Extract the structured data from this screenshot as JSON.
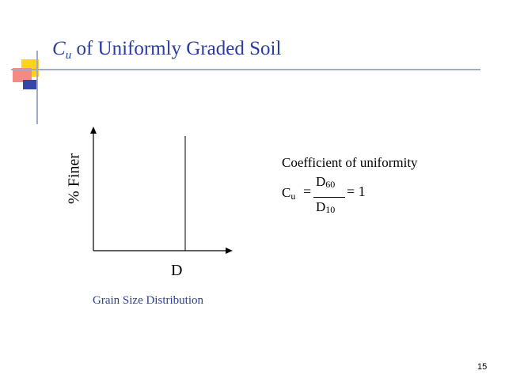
{
  "slide": {
    "title_italic": "C",
    "title_subscript": "u",
    "title_rest": " of Uniformly Graded Soil",
    "page_number": "15"
  },
  "colors": {
    "title": "#2b3d9c",
    "accent_yellow": "#ffd21f",
    "accent_red": "#f28a86",
    "accent_blue": "#3447a6",
    "rule": "#a3aac6"
  },
  "plot": {
    "y_label": "% Finer",
    "x_label": "D",
    "caption": "Grain Size Distribution"
  },
  "formula": {
    "heading": "Coefficient of uniformity",
    "lhs": "C",
    "lhs_sub": "u",
    "equals": "=",
    "numerator": "D",
    "numerator_sub": "60",
    "denominator": "D",
    "denominator_sub": "10",
    "result": "= 1"
  }
}
